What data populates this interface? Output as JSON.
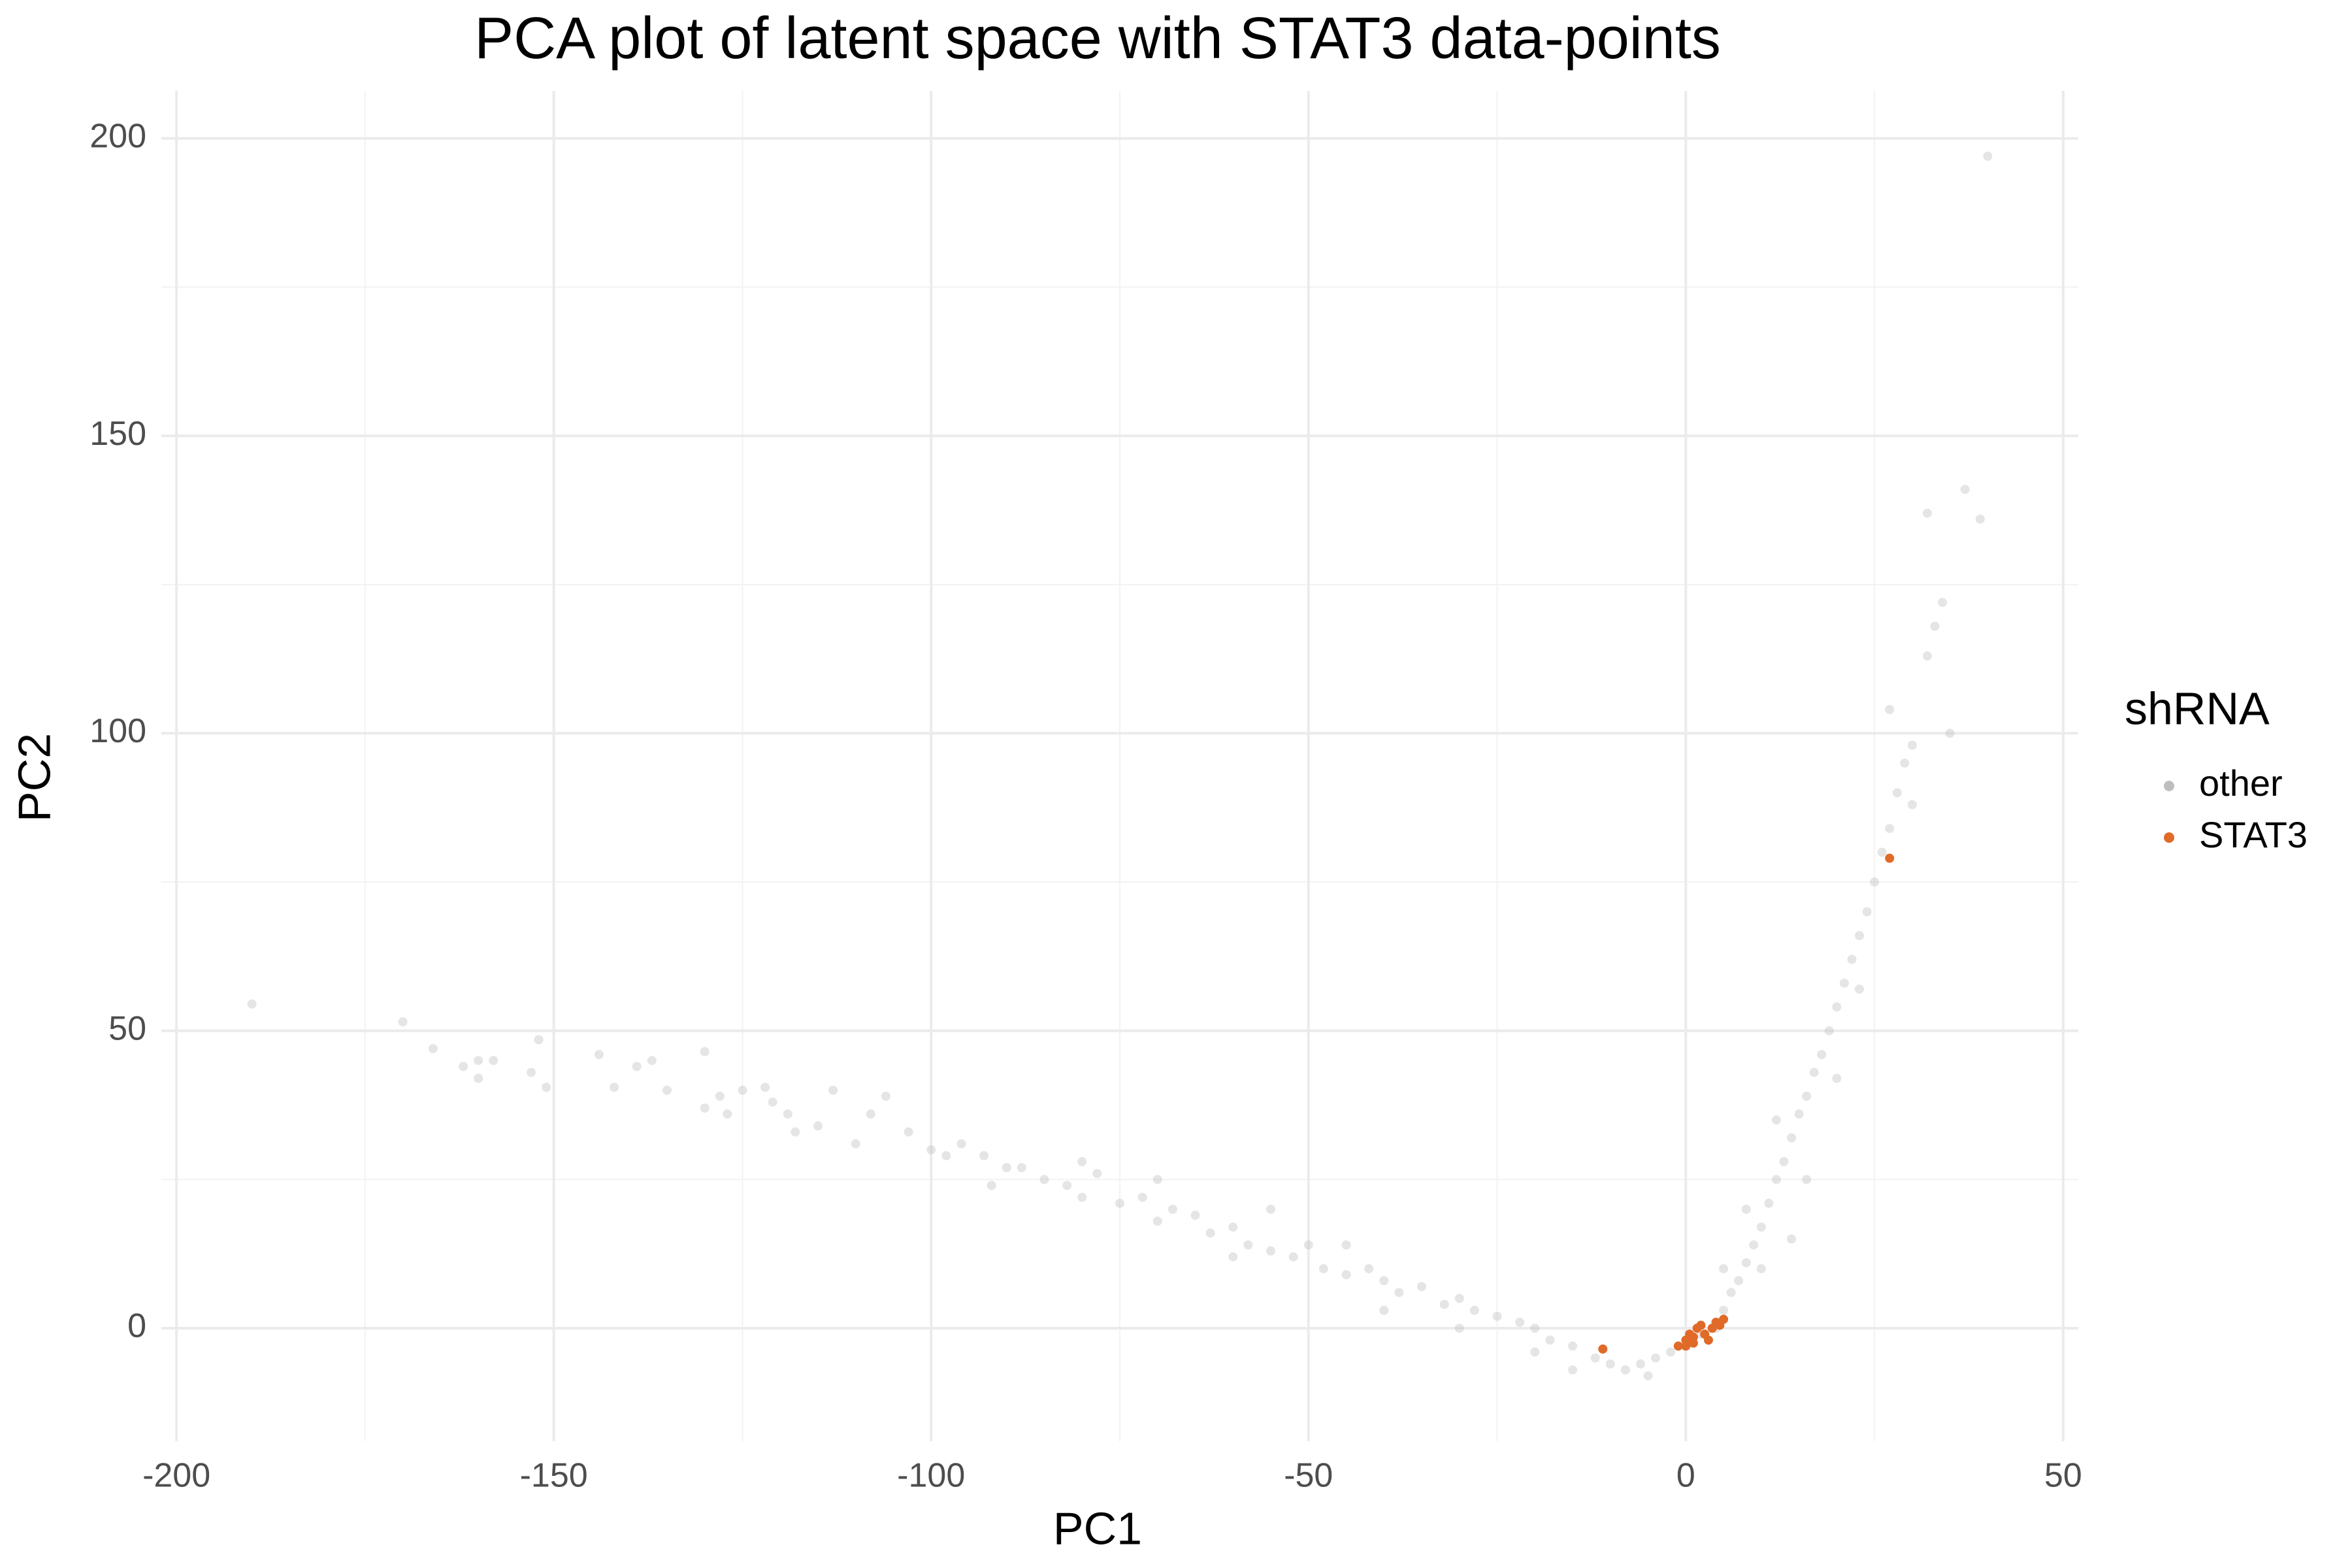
{
  "chart_data": {
    "type": "scatter",
    "title": "PCA plot of latent space with STAT3 data-points",
    "x_label": "PC1",
    "y_label": "PC2",
    "legend_title": "shRNA",
    "legend": "right",
    "grid": true,
    "xlim": [
      -202,
      52
    ],
    "ylim": [
      -19,
      208
    ],
    "xticks": [
      -200,
      -150,
      -100,
      -50,
      0,
      50
    ],
    "yticks": [
      0,
      50,
      100,
      150,
      200
    ],
    "xminor": [
      -175,
      -125,
      -75,
      -25,
      25
    ],
    "yminor": [
      25,
      75,
      125,
      175
    ],
    "series": [
      {
        "name": "other",
        "color": "#bebebe",
        "x": [
          -190,
          -170,
          -166,
          -162,
          -160,
          -158,
          -160,
          -153,
          -152,
          -151,
          -144,
          -142,
          -139,
          -137,
          -135,
          -130,
          -130,
          -128,
          -127,
          -125,
          -122,
          -121,
          -119,
          -118,
          -115,
          -113,
          -110,
          -108,
          -106,
          -103,
          -100,
          -98,
          -96,
          -93,
          -90,
          -88,
          -85,
          -82,
          -80,
          -78,
          -75,
          -72,
          -70,
          -68,
          -65,
          -63,
          -60,
          -58,
          -55,
          -52,
          -50,
          -48,
          -45,
          -42,
          -40,
          -38,
          -35,
          -32,
          -30,
          -28,
          -25,
          -22,
          -20,
          -18,
          -15,
          -12,
          -10,
          -8,
          -6,
          -4,
          -2,
          0,
          2,
          4,
          5,
          6,
          7,
          8,
          9,
          10,
          11,
          12,
          13,
          14,
          15,
          16,
          17,
          18,
          19,
          20,
          21,
          22,
          23,
          24,
          25,
          26,
          27,
          28,
          29,
          27,
          30,
          32,
          33,
          34,
          32,
          37,
          39,
          40,
          35,
          30,
          14,
          8,
          16,
          20,
          -60,
          -45,
          -70,
          -30,
          -20,
          -5,
          10,
          12,
          23,
          5,
          -55,
          -80,
          -92,
          -40,
          -15
        ],
        "values": [
          54.5,
          51.5,
          47,
          44,
          45,
          45,
          42,
          43,
          48.5,
          40.5,
          46,
          40.5,
          44,
          45,
          40,
          37,
          46.5,
          39,
          36,
          40,
          40.5,
          38,
          36,
          33,
          34,
          40,
          31,
          36,
          39,
          33,
          30,
          29,
          31,
          29,
          27,
          27,
          25,
          24,
          22,
          26,
          21,
          22,
          18,
          20,
          19,
          16,
          17,
          14,
          13,
          12,
          14,
          10,
          9,
          10,
          8,
          6,
          7,
          4,
          5,
          3,
          2,
          1,
          0,
          -2,
          -3,
          -5,
          -6,
          -7,
          -6,
          -5,
          -4,
          -3,
          -1,
          0,
          3,
          6,
          8,
          11,
          14,
          17,
          21,
          25,
          28,
          32,
          36,
          39,
          43,
          46,
          50,
          54,
          58,
          62,
          66,
          70,
          75,
          80,
          84,
          90,
          95,
          104,
          98,
          113,
          118,
          122,
          137,
          141,
          136,
          197,
          100,
          88,
          15,
          20,
          25,
          42,
          12,
          14,
          25,
          0,
          -4,
          -8,
          10,
          35,
          57,
          10,
          20,
          28,
          24,
          3,
          -7
        ]
      },
      {
        "name": "STAT3",
        "color": "#e06a28",
        "x": [
          27,
          -11,
          -1,
          0,
          0.5,
          1,
          1.5,
          2,
          2.5,
          3,
          3.5,
          4,
          4.5,
          5,
          0,
          1
        ],
        "values": [
          79,
          -3.5,
          -3,
          -2,
          -1,
          -1.5,
          0,
          0.5,
          -1,
          -2,
          0,
          1,
          0.5,
          1.5,
          -3,
          -2.5
        ]
      }
    ]
  }
}
